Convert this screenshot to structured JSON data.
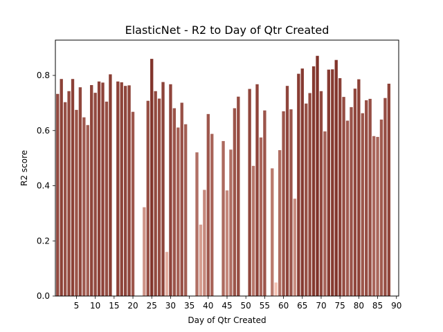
{
  "chart_data": {
    "type": "bar",
    "title": "ElasticNet - R2 to Day of Qtr Created",
    "xlabel": "Day of Qtr Created",
    "ylabel": "R2 score",
    "xlim": [
      -0.6,
      90.6
    ],
    "ylim": [
      0,
      0.928
    ],
    "xticks": [
      5,
      10,
      15,
      20,
      25,
      30,
      35,
      40,
      45,
      50,
      55,
      60,
      65,
      70,
      75,
      80,
      85,
      90
    ],
    "yticks": [
      0.0,
      0.2,
      0.4,
      0.6,
      0.8
    ],
    "ytick_labels": [
      "0.0",
      "0.2",
      "0.4",
      "0.6",
      "0.8"
    ],
    "grid": false,
    "color_scale": {
      "low": "#f4c3b5",
      "high": "#803229"
    },
    "x": [
      0,
      1,
      2,
      3,
      4,
      5,
      6,
      7,
      8,
      9,
      10,
      11,
      12,
      13,
      14,
      15,
      16,
      17,
      18,
      19,
      20,
      21,
      22,
      23,
      24,
      25,
      26,
      27,
      28,
      29,
      30,
      31,
      32,
      33,
      34,
      35,
      36,
      37,
      38,
      39,
      40,
      41,
      42,
      43,
      44,
      45,
      46,
      47,
      48,
      49,
      50,
      51,
      52,
      53,
      54,
      55,
      56,
      57,
      58,
      59,
      60,
      61,
      62,
      63,
      64,
      65,
      66,
      67,
      68,
      69,
      70,
      71,
      72,
      73,
      74,
      75,
      76,
      77,
      78,
      79,
      80,
      81,
      82,
      83,
      84,
      85,
      86,
      87,
      88,
      89,
      90
    ],
    "values": [
      0.733,
      0.787,
      0.703,
      0.743,
      0.787,
      0.675,
      0.757,
      0.648,
      0.62,
      0.765,
      0.737,
      0.778,
      0.774,
      0.705,
      0.804,
      0,
      0.778,
      0.775,
      0.762,
      0.764,
      0.668,
      0,
      0,
      0.322,
      0.708,
      0.86,
      0.743,
      0.716,
      0.776,
      0.16,
      0.768,
      0.681,
      0.611,
      0.701,
      0.623,
      0,
      0,
      0.521,
      0.259,
      0.385,
      0.66,
      0.588,
      0,
      0,
      0.562,
      0.383,
      0.531,
      0.681,
      0.723,
      0,
      0,
      0.751,
      0.472,
      0.768,
      0.575,
      0.673,
      0,
      0.463,
      0.049,
      0.529,
      0.67,
      0.762,
      0.677,
      0.353,
      0.806,
      0.825,
      0.698,
      0.736,
      0.833,
      0.871,
      0.743,
      0.597,
      0.821,
      0.822,
      0.856,
      0.79,
      0.722,
      0.636,
      0.685,
      0.752,
      0.786,
      0.663,
      0.71,
      0.715,
      0.58,
      0.577,
      0.64,
      0.718,
      0.77,
      0,
      0
    ]
  }
}
